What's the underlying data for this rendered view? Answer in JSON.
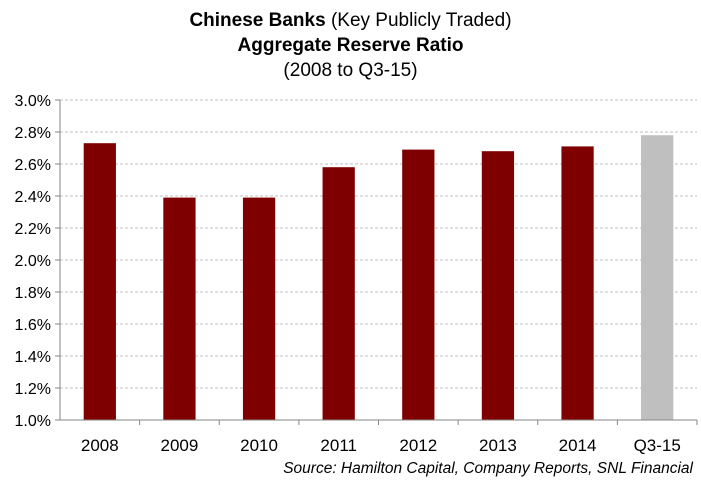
{
  "chart_data": {
    "type": "bar",
    "title_line1_bold": "Chinese Banks",
    "title_line1_rest": " (Key Publicly Traded)",
    "title_line2": "Aggregate Reserve Ratio",
    "title_line3": "(2008 to Q3-15)",
    "categories": [
      "2008",
      "2009",
      "2010",
      "2011",
      "2012",
      "2013",
      "2014",
      "Q3-15"
    ],
    "values": [
      2.73,
      2.39,
      2.39,
      2.58,
      2.69,
      2.68,
      2.71,
      2.78
    ],
    "ylim": [
      1.0,
      3.0
    ],
    "yticks": [
      "1.0%",
      "1.2%",
      "1.4%",
      "1.6%",
      "1.8%",
      "2.0%",
      "2.2%",
      "2.4%",
      "2.6%",
      "2.8%",
      "3.0%"
    ],
    "xlabel": "",
    "ylabel": "",
    "grid": true,
    "legend": "none",
    "colors": {
      "bar": "#7f0000",
      "highlight": "#bfbfbf",
      "grid": "#bfbfbf"
    },
    "source": "Source: Hamilton Capital, Company Reports, SNL Financial"
  }
}
